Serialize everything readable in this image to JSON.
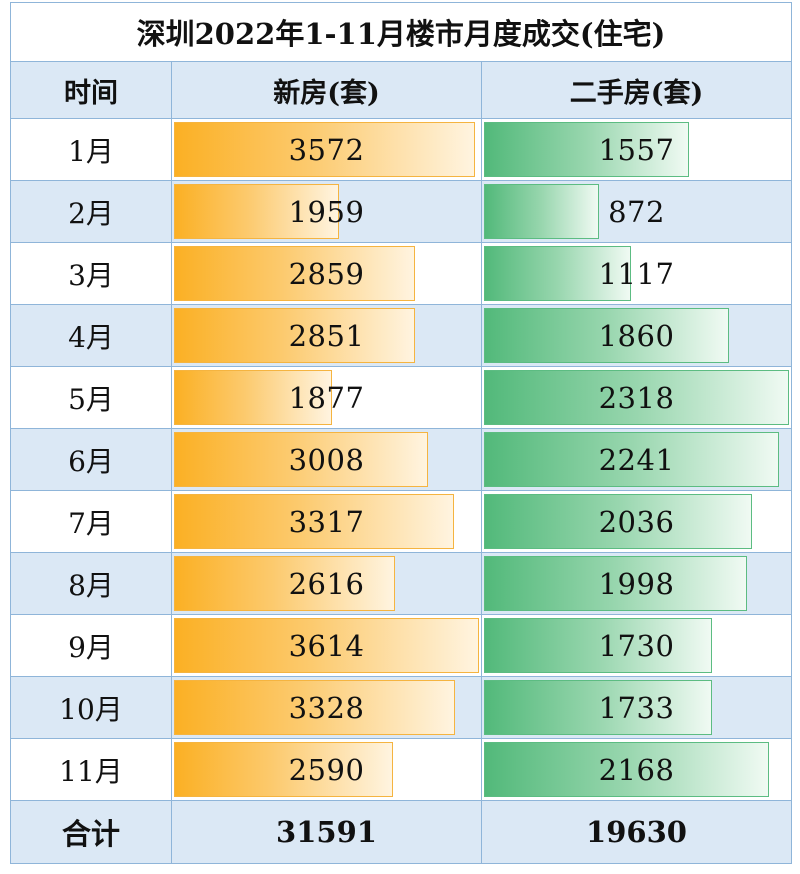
{
  "title": "深圳2022年1-11月楼市月度成交(住宅)",
  "headers": {
    "time": "时间",
    "new": "新房(套)",
    "used": "二手房(套)"
  },
  "colors": {
    "new_bar": "#fbb024",
    "used_bar": "#52b97a",
    "row_alt": "#dbe8f5",
    "border": "#8fb5d9"
  },
  "chart_data": {
    "type": "table",
    "title": "深圳2022年1-11月楼市月度成交(住宅)",
    "columns": [
      "时间",
      "新房(套)",
      "二手房(套)"
    ],
    "categories": [
      "1月",
      "2月",
      "3月",
      "4月",
      "5月",
      "6月",
      "7月",
      "8月",
      "9月",
      "10月",
      "11月"
    ],
    "series": [
      {
        "name": "新房(套)",
        "values": [
          3572,
          1959,
          2859,
          2851,
          1877,
          3008,
          3317,
          2616,
          3614,
          3328,
          2590
        ]
      },
      {
        "name": "二手房(套)",
        "values": [
          1557,
          872,
          1117,
          1860,
          2318,
          2241,
          2036,
          1998,
          1730,
          1733,
          2168
        ]
      }
    ],
    "totals": {
      "label": "合计",
      "new": "31591",
      "used": "19630"
    }
  }
}
